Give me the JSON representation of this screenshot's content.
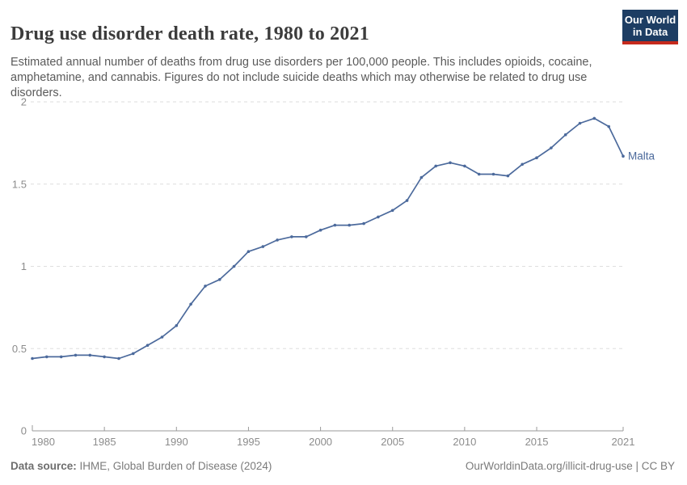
{
  "header": {
    "title": "Drug use disorder death rate, 1980 to 2021",
    "subtitle": "Estimated annual number of deaths from drug use disorders per 100,000 people. This includes opioids, cocaine, amphetamine, and cannabis. Figures do not include suicide deaths which may otherwise be related to drug use disorders.",
    "logo": {
      "line1": "Our World",
      "line2": "in Data",
      "bg_color": "#1d3d63",
      "accent_color": "#c52a1c"
    }
  },
  "chart_data": {
    "type": "line",
    "title": "Drug use disorder death rate, 1980 to 2021",
    "xlabel": "",
    "ylabel": "",
    "xlim": [
      1980,
      2021
    ],
    "ylim": [
      0,
      2
    ],
    "grid": "horizontal-dashed",
    "legend_position": "end-of-line-label",
    "x_ticks": [
      1980,
      1985,
      1990,
      1995,
      2000,
      2005,
      2010,
      2015,
      2021
    ],
    "y_ticks": [
      0,
      0.5,
      1,
      1.5,
      2
    ],
    "x": [
      1980,
      1981,
      1982,
      1983,
      1984,
      1985,
      1986,
      1987,
      1988,
      1989,
      1990,
      1991,
      1992,
      1993,
      1994,
      1995,
      1996,
      1997,
      1998,
      1999,
      2000,
      2001,
      2002,
      2003,
      2004,
      2005,
      2006,
      2007,
      2008,
      2009,
      2010,
      2011,
      2012,
      2013,
      2014,
      2015,
      2016,
      2017,
      2018,
      2019,
      2020,
      2021
    ],
    "series": [
      {
        "name": "Malta",
        "color": "#4c6a9c",
        "values": [
          0.44,
          0.45,
          0.45,
          0.46,
          0.46,
          0.45,
          0.44,
          0.47,
          0.52,
          0.57,
          0.64,
          0.77,
          0.88,
          0.92,
          1.0,
          1.09,
          1.12,
          1.16,
          1.18,
          1.18,
          1.22,
          1.25,
          1.25,
          1.26,
          1.3,
          1.34,
          1.4,
          1.54,
          1.61,
          1.63,
          1.61,
          1.56,
          1.56,
          1.55,
          1.62,
          1.66,
          1.72,
          1.8,
          1.87,
          1.9,
          1.85,
          1.67
        ]
      }
    ]
  },
  "footer": {
    "source_label": "Data source:",
    "source_text": " IHME, Global Burden of Disease (2024)",
    "link_text": "OurWorldinData.org/illicit-drug-use",
    "license_suffix": " | CC BY"
  }
}
